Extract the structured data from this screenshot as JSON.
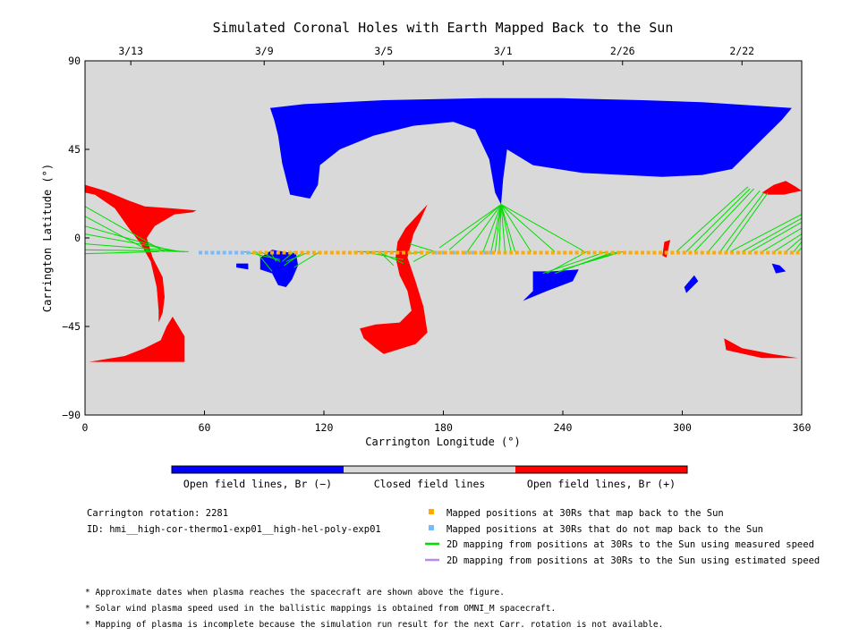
{
  "chart_data": {
    "type": "map",
    "title": "Simulated Coronal Holes with Earth Mapped Back to the Sun",
    "xlabel": "Carrington Longitude (°)",
    "ylabel": "Carrington Latitude (°)",
    "xlim": [
      0,
      360
    ],
    "ylim": [
      -90,
      90
    ],
    "xticks": [
      0,
      60,
      120,
      180,
      240,
      300,
      360
    ],
    "yticks": [
      -90,
      -45,
      0,
      45,
      90
    ],
    "ytick_labels": [
      "−90",
      "−45",
      "0",
      "45",
      "90"
    ],
    "top_axis_dates": [
      {
        "label": "3/13",
        "lon": 23
      },
      {
        "label": "3/9",
        "lon": 90
      },
      {
        "label": "3/5",
        "lon": 150
      },
      {
        "label": "3/1",
        "lon": 210
      },
      {
        "label": "2/26",
        "lon": 270
      },
      {
        "label": "2/22",
        "lon": 330
      }
    ],
    "colors": {
      "background": "#d9d9d9",
      "open_negative": "#0000ff",
      "open_positive": "#ff0000",
      "mapped_points": "#ffaa00",
      "unmapped_points": "#77bbff",
      "measured_speed_lines": "#00dd00",
      "estimated_speed_lines": "#bb88ee"
    },
    "regions": {
      "open_negative": [
        {
          "name": "north-polar-hole",
          "lonlat": [
            [
              93,
              66
            ],
            [
              110,
              68
            ],
            [
              150,
              70
            ],
            [
              200,
              71
            ],
            [
              240,
              71
            ],
            [
              280,
              70
            ],
            [
              310,
              69
            ],
            [
              355,
              66
            ],
            [
              350,
              60
            ],
            [
              340,
              50
            ],
            [
              325,
              35
            ],
            [
              310,
              32
            ],
            [
              290,
              31
            ],
            [
              250,
              33
            ],
            [
              225,
              37
            ],
            [
              212,
              45
            ],
            [
              210,
              30
            ],
            [
              209,
              17
            ],
            [
              206,
              23
            ],
            [
              203,
              40
            ],
            [
              196,
              55
            ],
            [
              185,
              59
            ],
            [
              165,
              57
            ],
            [
              145,
              52
            ],
            [
              128,
              45
            ],
            [
              118,
              37
            ],
            [
              117,
              27
            ],
            [
              113,
              20
            ],
            [
              103,
              22
            ],
            [
              99,
              38
            ],
            [
              97,
              52
            ],
            [
              95,
              60
            ]
          ]
        },
        {
          "name": "equatorial-hole-90",
          "lonlat": [
            [
              88,
              -10
            ],
            [
              94,
              -6
            ],
            [
              100,
              -7
            ],
            [
              106,
              -8
            ],
            [
              107,
              -14
            ],
            [
              104,
              -21
            ],
            [
              101,
              -25
            ],
            [
              97,
              -24
            ],
            [
              94,
              -18
            ],
            [
              88,
              -16
            ]
          ]
        },
        {
          "name": "equatorial-hole-75",
          "lonlat": [
            [
              76,
              -13
            ],
            [
              82,
              -13
            ],
            [
              82,
              -16
            ],
            [
              76,
              -15
            ]
          ]
        },
        {
          "name": "hole-230",
          "lonlat": [
            [
              225,
              -17
            ],
            [
              235,
              -17
            ],
            [
              248,
              -16
            ],
            [
              245,
              -22
            ],
            [
              232,
              -27
            ],
            [
              220,
              -32
            ],
            [
              225,
              -27
            ]
          ]
        },
        {
          "name": "hole-303",
          "lonlat": [
            [
              306,
              -19
            ],
            [
              308,
              -22
            ],
            [
              302,
              -28
            ],
            [
              301,
              -25
            ]
          ]
        },
        {
          "name": "hole-347",
          "lonlat": [
            [
              345,
              -13
            ],
            [
              349,
              -14
            ],
            [
              352,
              -17
            ],
            [
              347,
              -18
            ]
          ]
        }
      ],
      "open_positive": [
        {
          "name": "west-hole",
          "lonlat": [
            [
              0,
              27
            ],
            [
              10,
              24
            ],
            [
              22,
              19
            ],
            [
              30,
              16
            ],
            [
              44,
              15
            ],
            [
              56,
              14
            ],
            [
              54,
              13
            ],
            [
              45,
              12
            ],
            [
              35,
              6
            ],
            [
              31,
              0
            ],
            [
              34,
              -10
            ],
            [
              39,
              -20
            ],
            [
              40,
              -30
            ],
            [
              39,
              -38
            ],
            [
              37,
              -43
            ],
            [
              37,
              -37
            ],
            [
              36,
              -25
            ],
            [
              33,
              -12
            ],
            [
              28,
              -3
            ],
            [
              22,
              5
            ],
            [
              15,
              15
            ],
            [
              5,
              22
            ],
            [
              0,
              23
            ]
          ]
        },
        {
          "name": "southwest-band",
          "lonlat": [
            [
              2,
              -63
            ],
            [
              50,
              -63
            ],
            [
              50,
              -50
            ],
            [
              44,
              -40
            ],
            [
              41,
              -45
            ],
            [
              38,
              -52
            ],
            [
              30,
              -56
            ],
            [
              20,
              -60
            ]
          ]
        },
        {
          "name": "band-160",
          "lonlat": [
            [
              172,
              17
            ],
            [
              168,
              8
            ],
            [
              165,
              2
            ],
            [
              162,
              -10
            ],
            [
              166,
              -22
            ],
            [
              170,
              -35
            ],
            [
              172,
              -48
            ],
            [
              166,
              -54
            ],
            [
              150,
              -59
            ],
            [
              146,
              -56
            ],
            [
              140,
              -51
            ],
            [
              138,
              -46
            ],
            [
              146,
              -44
            ],
            [
              158,
              -43
            ],
            [
              164,
              -37
            ],
            [
              162,
              -27
            ],
            [
              158,
              -19
            ],
            [
              156,
              -10
            ],
            [
              157,
              -2
            ],
            [
              161,
              5
            ]
          ]
        },
        {
          "name": "northeast-hole",
          "lonlat": [
            [
              340,
              23
            ],
            [
              346,
              27
            ],
            [
              352,
              29
            ],
            [
              357,
              26
            ],
            [
              360,
              24
            ],
            [
              351,
              22
            ],
            [
              343,
              22
            ]
          ]
        },
        {
          "name": "southeast-band",
          "lonlat": [
            [
              321,
              -51
            ],
            [
              330,
              -56
            ],
            [
              345,
              -59
            ],
            [
              358,
              -61
            ],
            [
              340,
              -61
            ],
            [
              322,
              -57
            ]
          ]
        },
        {
          "name": "streak-292",
          "lonlat": [
            [
              291,
              -2
            ],
            [
              294,
              -1
            ],
            [
              292,
              -10
            ],
            [
              290,
              -9
            ]
          ]
        }
      ]
    },
    "mapped_points": {
      "lon": [
        85,
        88,
        91,
        94,
        97,
        100,
        103,
        106,
        109,
        112,
        115,
        118,
        121,
        124,
        127,
        130,
        133,
        136,
        139,
        142,
        145,
        148,
        151,
        154,
        157,
        160,
        163,
        166,
        169,
        172,
        175,
        178,
        181,
        184,
        187,
        190,
        193,
        196,
        199,
        202,
        205,
        208,
        211,
        214,
        217,
        220,
        223,
        226,
        229,
        232,
        235,
        238,
        241,
        244,
        247,
        250,
        253,
        256,
        259,
        262,
        265,
        268,
        271,
        274,
        277,
        280,
        283,
        286,
        289,
        292,
        295,
        298,
        301,
        304,
        307,
        310,
        313,
        316,
        319,
        322,
        325,
        328,
        331,
        334,
        337,
        340,
        343,
        346,
        349,
        352,
        355,
        358
      ],
      "lat": -7.5
    },
    "unmapped_points": {
      "lon": [
        58,
        61,
        64,
        67,
        70,
        73,
        76,
        79,
        82,
        176,
        180,
        185,
        191,
        195,
        201,
        204
      ],
      "lat": -7.5
    },
    "mapping_lines_measured": [
      [
        [
          0,
          11
        ],
        [
          33,
          -7
        ]
      ],
      [
        [
          0,
          16
        ],
        [
          40,
          -7
        ]
      ],
      [
        [
          0,
          6
        ],
        [
          45,
          -7
        ]
      ],
      [
        [
          0,
          2
        ],
        [
          48,
          -7
        ]
      ],
      [
        [
          0,
          -8
        ],
        [
          37,
          -7
        ]
      ],
      [
        [
          0,
          -3
        ],
        [
          50,
          -7
        ]
      ],
      [
        [
          0,
          -6
        ],
        [
          52,
          -7
        ]
      ],
      [
        [
          98,
          -11
        ],
        [
          80,
          -7
        ]
      ],
      [
        [
          98,
          -12
        ],
        [
          88,
          -7
        ]
      ],
      [
        [
          96,
          -12
        ],
        [
          93,
          -7
        ]
      ],
      [
        [
          99,
          -12
        ],
        [
          105,
          -7
        ]
      ],
      [
        [
          100,
          -14
        ],
        [
          110,
          -7
        ]
      ],
      [
        [
          101,
          -12
        ],
        [
          113,
          -7
        ]
      ],
      [
        [
          94,
          -17
        ],
        [
          86,
          -7
        ]
      ],
      [
        [
          105,
          -15
        ],
        [
          118,
          -7
        ]
      ],
      [
        [
          160,
          -7
        ],
        [
          135,
          -7
        ]
      ],
      [
        [
          160,
          -11
        ],
        [
          140,
          -7
        ]
      ],
      [
        [
          160,
          -13
        ],
        [
          147,
          -7
        ]
      ],
      [
        [
          163,
          -8
        ],
        [
          170,
          -7
        ]
      ],
      [
        [
          165,
          -12
        ],
        [
          174,
          -7
        ]
      ],
      [
        [
          163,
          -3
        ],
        [
          176,
          -7
        ]
      ],
      [
        [
          155,
          -14
        ],
        [
          148,
          -7
        ]
      ],
      [
        [
          209,
          17
        ],
        [
          178,
          -5
        ]
      ],
      [
        [
          209,
          17
        ],
        [
          183,
          -6
        ]
      ],
      [
        [
          209,
          17
        ],
        [
          192,
          -7
        ]
      ],
      [
        [
          209,
          17
        ],
        [
          200,
          -7
        ]
      ],
      [
        [
          209,
          17
        ],
        [
          204,
          -7
        ]
      ],
      [
        [
          209,
          17
        ],
        [
          206,
          -7
        ]
      ],
      [
        [
          209,
          17
        ],
        [
          208,
          -7
        ]
      ],
      [
        [
          209,
          17
        ],
        [
          211,
          -7
        ]
      ],
      [
        [
          209,
          17
        ],
        [
          214,
          -7
        ]
      ],
      [
        [
          209,
          17
        ],
        [
          216,
          -7
        ]
      ],
      [
        [
          209,
          17
        ],
        [
          224,
          -7
        ]
      ],
      [
        [
          209,
          17
        ],
        [
          236,
          -7
        ]
      ],
      [
        [
          209,
          17
        ],
        [
          251,
          -7
        ]
      ],
      [
        [
          232,
          -18
        ],
        [
          252,
          -7
        ]
      ],
      [
        [
          230,
          -18
        ],
        [
          262,
          -7
        ]
      ],
      [
        [
          238,
          -17
        ],
        [
          268,
          -7
        ]
      ],
      [
        [
          240,
          -16
        ],
        [
          270,
          -7
        ]
      ],
      [
        [
          236,
          -18
        ],
        [
          266,
          -7
        ]
      ],
      [
        [
          333,
          26
        ],
        [
          297,
          -7
        ]
      ],
      [
        [
          334,
          25
        ],
        [
          302,
          -7
        ]
      ],
      [
        [
          336,
          25
        ],
        [
          306,
          -7
        ]
      ],
      [
        [
          339,
          24
        ],
        [
          313,
          -7
        ]
      ],
      [
        [
          341,
          23
        ],
        [
          319,
          -7
        ]
      ],
      [
        [
          343,
          23
        ],
        [
          322,
          -7
        ]
      ],
      [
        [
          360,
          12
        ],
        [
          324,
          -7
        ]
      ],
      [
        [
          360,
          10
        ],
        [
          330,
          -7
        ]
      ],
      [
        [
          360,
          8
        ],
        [
          334,
          -7
        ]
      ],
      [
        [
          360,
          5
        ],
        [
          340,
          -7
        ]
      ],
      [
        [
          360,
          2
        ],
        [
          346,
          -7
        ]
      ],
      [
        [
          360,
          0
        ],
        [
          352,
          -7
        ]
      ],
      [
        [
          360,
          -2
        ],
        [
          356,
          -7
        ]
      ],
      [
        [
          360,
          -5
        ],
        [
          358,
          -7
        ]
      ]
    ],
    "mapping_lines_estimated": []
  },
  "colorbar": {
    "labels": [
      "Open field lines, Br (−)",
      "Closed field lines",
      "Open field lines, Br (+)"
    ]
  },
  "info": {
    "rotation": "Carrington rotation: 2281",
    "id": "ID: hmi__high-cor-thermo1-exp01__high-hel-poly-exp01"
  },
  "legend": [
    {
      "label": "Mapped positions at 30Rs that map back to the Sun",
      "kind": "square",
      "color": "#ffaa00"
    },
    {
      "label": "Mapped positions at 30Rs that do not map back to the Sun",
      "kind": "square",
      "color": "#77bbff"
    },
    {
      "label": "2D mapping from positions at 30Rs to the Sun using measured speed",
      "kind": "line",
      "color": "#00dd00"
    },
    {
      "label": "2D mapping from positions at 30Rs to the Sun using estimated speed",
      "kind": "line",
      "color": "#bb88ee"
    }
  ],
  "notes": [
    "* Approximate dates when plasma reaches the spacecraft are shown above the figure.",
    "* Solar wind plasma speed used in the ballistic mappings is obtained from OMNI_M spacecraft.",
    "* Mapping of plasma is incomplete because the simulation run result for the next Carr. rotation is not available."
  ]
}
